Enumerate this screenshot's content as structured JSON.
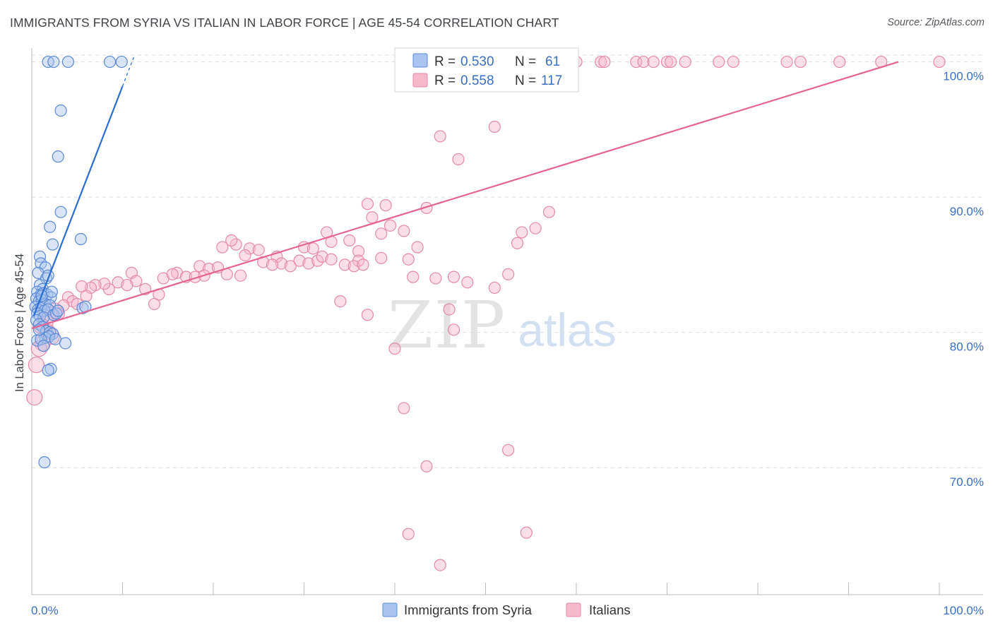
{
  "title": "IMMIGRANTS FROM SYRIA VS ITALIAN IN LABOR FORCE | AGE 45-54 CORRELATION CHART",
  "source": "Source: ZipAtlas.com",
  "watermark": {
    "zip": "ZIP",
    "atlas": "atlas"
  },
  "colors": {
    "syria_fill": "#a9c4ee",
    "syria_stroke": "#5b8ad6",
    "syria_line": "#2b6fd0",
    "italians_fill": "#f6b8cb",
    "italians_stroke": "#e58aa8",
    "italians_line": "#e46592",
    "tick_text": "#3a6fc4",
    "grid": "#dddddd"
  },
  "legend": {
    "rows": [
      {
        "r_label": "R =",
        "r_value": "0.530",
        "n_label": "N =",
        "n_value": "61"
      },
      {
        "r_label": "R =",
        "r_value": "0.558",
        "n_label": "N =",
        "n_value": "117"
      }
    ]
  },
  "chart_data": {
    "type": "scatter",
    "title": "IMMIGRANTS FROM SYRIA VS ITALIAN IN LABOR FORCE | AGE 45-54 CORRELATION CHART",
    "xlabel": "",
    "ylabel": "In Labor Force | Age 45-54",
    "xlim": [
      0,
      100
    ],
    "ylim": [
      61.5,
      100.5
    ],
    "x_tick_labels": [
      "0.0%",
      "100.0%"
    ],
    "y_ticks": [
      {
        "value": 70,
        "label": "70.0%"
      },
      {
        "value": 80,
        "label": "80.0%"
      },
      {
        "value": 90,
        "label": "90.0%"
      },
      {
        "value": 100,
        "label": "100.0%"
      }
    ],
    "series": [
      {
        "name": "Immigrants from Syria",
        "R": 0.53,
        "N": 61,
        "trend": {
          "x0": 0.2,
          "y0": 81.2,
          "x1": 10.0,
          "y1": 98.2,
          "dash_x1": 11.3
        },
        "points": [
          [
            1.8,
            100
          ],
          [
            2.4,
            100
          ],
          [
            4.0,
            100
          ],
          [
            8.6,
            100
          ],
          [
            9.9,
            100
          ],
          [
            3.2,
            96.4
          ],
          [
            2.9,
            93.0
          ],
          [
            3.2,
            88.9
          ],
          [
            2.0,
            87.8
          ],
          [
            2.3,
            86.5
          ],
          [
            5.4,
            86.9
          ],
          [
            0.9,
            85.6
          ],
          [
            1.0,
            85.1
          ],
          [
            1.5,
            84.8
          ],
          [
            0.7,
            84.4
          ],
          [
            1.6,
            84.0
          ],
          [
            1.8,
            84.2
          ],
          [
            0.9,
            83.5
          ],
          [
            1.2,
            83.2
          ],
          [
            0.6,
            83.0
          ],
          [
            1.0,
            82.8
          ],
          [
            1.3,
            82.9
          ],
          [
            1.7,
            82.8
          ],
          [
            2.1,
            82.6
          ],
          [
            0.5,
            82.5
          ],
          [
            0.8,
            82.3
          ],
          [
            1.1,
            82.4
          ],
          [
            1.5,
            82.1
          ],
          [
            2.0,
            82.0
          ],
          [
            0.4,
            81.9
          ],
          [
            0.7,
            81.7
          ],
          [
            1.0,
            81.8
          ],
          [
            1.4,
            81.6
          ],
          [
            1.8,
            81.7
          ],
          [
            5.6,
            81.8
          ],
          [
            5.9,
            81.9
          ],
          [
            0.6,
            81.4
          ],
          [
            0.9,
            81.2
          ],
          [
            1.3,
            81.1
          ],
          [
            2.4,
            81.3
          ],
          [
            2.7,
            81.4
          ],
          [
            0.5,
            80.9
          ],
          [
            0.8,
            80.6
          ],
          [
            1.2,
            80.4
          ],
          [
            1.6,
            80.1
          ],
          [
            2.0,
            80.0
          ],
          [
            2.3,
            79.9
          ],
          [
            1.5,
            79.6
          ],
          [
            1.9,
            79.7
          ],
          [
            2.6,
            79.5
          ],
          [
            0.6,
            79.4
          ],
          [
            1.0,
            79.5
          ],
          [
            3.7,
            79.2
          ],
          [
            1.3,
            79.0
          ],
          [
            2.1,
            77.3
          ],
          [
            1.8,
            77.2
          ],
          [
            1.4,
            70.4
          ],
          [
            2.9,
            81.6
          ],
          [
            1.1,
            82.7
          ],
          [
            2.2,
            83.0
          ],
          [
            0.8,
            80.2
          ]
        ]
      },
      {
        "name": "Italians",
        "R": 0.558,
        "N": 117,
        "trend": {
          "x0": 0.0,
          "y0": 80.3,
          "x1": 95.5,
          "y1": 100.0
        },
        "points": [
          [
            55.5,
            100
          ],
          [
            58.2,
            100
          ],
          [
            60.0,
            100
          ],
          [
            62.7,
            100
          ],
          [
            63.1,
            100
          ],
          [
            66.6,
            100
          ],
          [
            67.4,
            100
          ],
          [
            68.5,
            100
          ],
          [
            70.0,
            100
          ],
          [
            70.4,
            100
          ],
          [
            72.0,
            100
          ],
          [
            75.7,
            100
          ],
          [
            77.3,
            100
          ],
          [
            83.2,
            100
          ],
          [
            84.7,
            100
          ],
          [
            89.0,
            100
          ],
          [
            93.6,
            100
          ],
          [
            100.0,
            100
          ],
          [
            45.0,
            94.5
          ],
          [
            47.0,
            92.8
          ],
          [
            51.0,
            95.2
          ],
          [
            37.0,
            89.5
          ],
          [
            39.0,
            89.4
          ],
          [
            43.5,
            89.2
          ],
          [
            57.0,
            88.9
          ],
          [
            37.5,
            88.5
          ],
          [
            39.5,
            87.9
          ],
          [
            41.0,
            87.5
          ],
          [
            38.5,
            87.3
          ],
          [
            54.0,
            87.4
          ],
          [
            55.5,
            87.7
          ],
          [
            32.5,
            87.4
          ],
          [
            35.0,
            86.8
          ],
          [
            33.0,
            86.7
          ],
          [
            42.5,
            86.3
          ],
          [
            36.0,
            86.0
          ],
          [
            21.0,
            86.3
          ],
          [
            22.5,
            86.5
          ],
          [
            24.0,
            86.2
          ],
          [
            25.0,
            86.1
          ],
          [
            22.0,
            86.8
          ],
          [
            30.0,
            86.3
          ],
          [
            31.0,
            86.2
          ],
          [
            27.0,
            85.6
          ],
          [
            27.5,
            85.1
          ],
          [
            28.5,
            84.9
          ],
          [
            29.5,
            85.3
          ],
          [
            30.5,
            85.1
          ],
          [
            31.5,
            85.3
          ],
          [
            32.0,
            85.6
          ],
          [
            33.0,
            85.4
          ],
          [
            34.5,
            85.0
          ],
          [
            36.0,
            85.3
          ],
          [
            38.5,
            85.5
          ],
          [
            41.5,
            85.4
          ],
          [
            35.5,
            84.9
          ],
          [
            36.5,
            85.0
          ],
          [
            23.5,
            85.7
          ],
          [
            25.5,
            85.2
          ],
          [
            26.5,
            85.0
          ],
          [
            18.5,
            84.9
          ],
          [
            19.5,
            84.7
          ],
          [
            20.5,
            84.8
          ],
          [
            16.0,
            84.4
          ],
          [
            17.0,
            84.1
          ],
          [
            14.5,
            84.0
          ],
          [
            15.5,
            84.3
          ],
          [
            18.0,
            84.1
          ],
          [
            19.0,
            84.2
          ],
          [
            21.5,
            84.3
          ],
          [
            23.0,
            84.2
          ],
          [
            11.0,
            84.4
          ],
          [
            11.5,
            83.8
          ],
          [
            9.5,
            83.7
          ],
          [
            10.5,
            83.5
          ],
          [
            8.5,
            83.2
          ],
          [
            8.0,
            83.6
          ],
          [
            12.5,
            83.2
          ],
          [
            14.0,
            82.8
          ],
          [
            13.5,
            82.1
          ],
          [
            7.0,
            83.5
          ],
          [
            6.5,
            83.3
          ],
          [
            5.5,
            83.4
          ],
          [
            6.0,
            82.7
          ],
          [
            4.0,
            82.6
          ],
          [
            4.5,
            82.3
          ],
          [
            5.0,
            82.1
          ],
          [
            3.5,
            82.0
          ],
          [
            2.5,
            81.6
          ],
          [
            3.0,
            81.4
          ],
          [
            2.0,
            81.3
          ],
          [
            1.5,
            80.8
          ],
          [
            1.0,
            80.5
          ],
          [
            1.8,
            80.0
          ],
          [
            2.2,
            79.7
          ],
          [
            1.2,
            79.2
          ],
          [
            0.8,
            78.8
          ],
          [
            0.5,
            77.6
          ],
          [
            0.3,
            75.2
          ],
          [
            42.0,
            84.1
          ],
          [
            44.5,
            84.0
          ],
          [
            46.5,
            84.1
          ],
          [
            34.0,
            82.3
          ],
          [
            46.0,
            81.7
          ],
          [
            37.0,
            81.3
          ],
          [
            46.5,
            80.2
          ],
          [
            40.0,
            78.8
          ],
          [
            41.0,
            74.4
          ],
          [
            43.5,
            70.1
          ],
          [
            52.5,
            71.3
          ],
          [
            41.5,
            65.1
          ],
          [
            54.5,
            65.2
          ],
          [
            45.0,
            62.8
          ],
          [
            48.0,
            83.7
          ],
          [
            51.0,
            83.3
          ],
          [
            52.5,
            84.3
          ],
          [
            53.5,
            86.6
          ]
        ]
      }
    ]
  }
}
